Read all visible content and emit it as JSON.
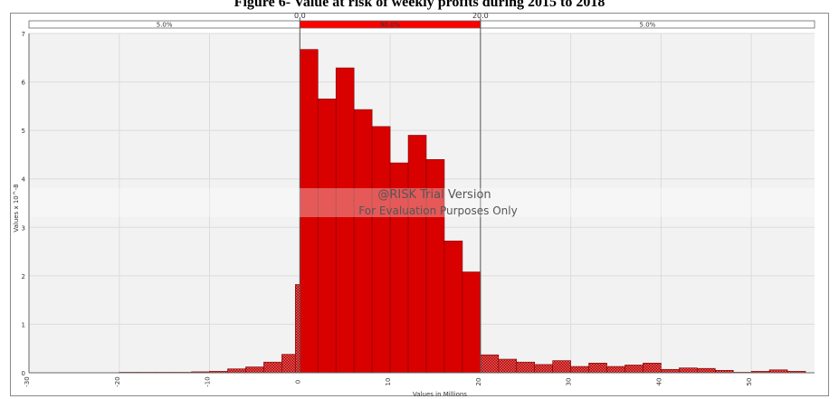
{
  "title": "Figure 6- Value at risk of weekly profits during 2015 to 2018",
  "colors": {
    "bar": "#d90000",
    "bar_edge": "#7a0000",
    "plot_bg": "#f2f2f2",
    "grid": "#dcdcdc",
    "band": "#ff0000",
    "delimiter": "#555555"
  },
  "chart_data": {
    "type": "bar",
    "title": "Figure 6- Value at risk of weekly profits during 2015 to 2018",
    "xlabel": "Values in Millions",
    "ylabel": "Values x 10^-8",
    "xlim": [
      -30,
      57
    ],
    "ylim": [
      0,
      7
    ],
    "yticks": [
      0,
      1,
      2,
      3,
      4,
      5,
      6,
      7
    ],
    "xticks": [
      -30,
      -20,
      -10,
      0,
      10,
      20,
      30,
      40,
      50
    ],
    "xtick_labels": [
      "-30",
      "-20",
      "-10",
      "0",
      "10",
      "20",
      "30",
      "40",
      "50"
    ],
    "grid": true,
    "bin_width": 2,
    "bins": [
      {
        "x": -20,
        "value": 0.01
      },
      {
        "x": -18,
        "value": 0.01
      },
      {
        "x": -16,
        "value": 0.01
      },
      {
        "x": -14,
        "value": 0.01
      },
      {
        "x": -12,
        "value": 0.02
      },
      {
        "x": -10,
        "value": 0.03
      },
      {
        "x": -8,
        "value": 0.08
      },
      {
        "x": -6,
        "value": 0.12
      },
      {
        "x": -4,
        "value": 0.22
      },
      {
        "x": -2,
        "value": 0.38
      },
      {
        "x": -0.5,
        "value": 1.82
      },
      {
        "x": 0,
        "value": 6.67
      },
      {
        "x": 2,
        "value": 5.65
      },
      {
        "x": 4,
        "value": 6.29
      },
      {
        "x": 6,
        "value": 5.43
      },
      {
        "x": 8,
        "value": 5.08
      },
      {
        "x": 10,
        "value": 4.33
      },
      {
        "x": 12,
        "value": 4.9
      },
      {
        "x": 14,
        "value": 4.4
      },
      {
        "x": 16,
        "value": 2.72
      },
      {
        "x": 18,
        "value": 2.08
      },
      {
        "x": 20,
        "value": 0.37
      },
      {
        "x": 22,
        "value": 0.28
      },
      {
        "x": 24,
        "value": 0.22
      },
      {
        "x": 26,
        "value": 0.17
      },
      {
        "x": 28,
        "value": 0.25
      },
      {
        "x": 30,
        "value": 0.13
      },
      {
        "x": 32,
        "value": 0.2
      },
      {
        "x": 34,
        "value": 0.13
      },
      {
        "x": 36,
        "value": 0.16
      },
      {
        "x": 38,
        "value": 0.2
      },
      {
        "x": 40,
        "value": 0.07
      },
      {
        "x": 42,
        "value": 0.1
      },
      {
        "x": 44,
        "value": 0.09
      },
      {
        "x": 46,
        "value": 0.05
      },
      {
        "x": 48,
        "value": 0.01
      },
      {
        "x": 50,
        "value": 0.03
      },
      {
        "x": 52,
        "value": 0.06
      },
      {
        "x": 54,
        "value": 0.03
      }
    ],
    "delimiters": [
      {
        "x": 0,
        "label": "0.0"
      },
      {
        "x": 20,
        "label": "20.0"
      }
    ],
    "probability_band": [
      {
        "from": -30,
        "to": 0,
        "label": "5.0%"
      },
      {
        "from": 0,
        "to": 20,
        "label": "90.0%"
      },
      {
        "from": 20,
        "to": 57,
        "label": "5.0%"
      }
    ],
    "watermark": [
      "@RISK Trial Version",
      "For Evaluation Purposes Only"
    ]
  }
}
